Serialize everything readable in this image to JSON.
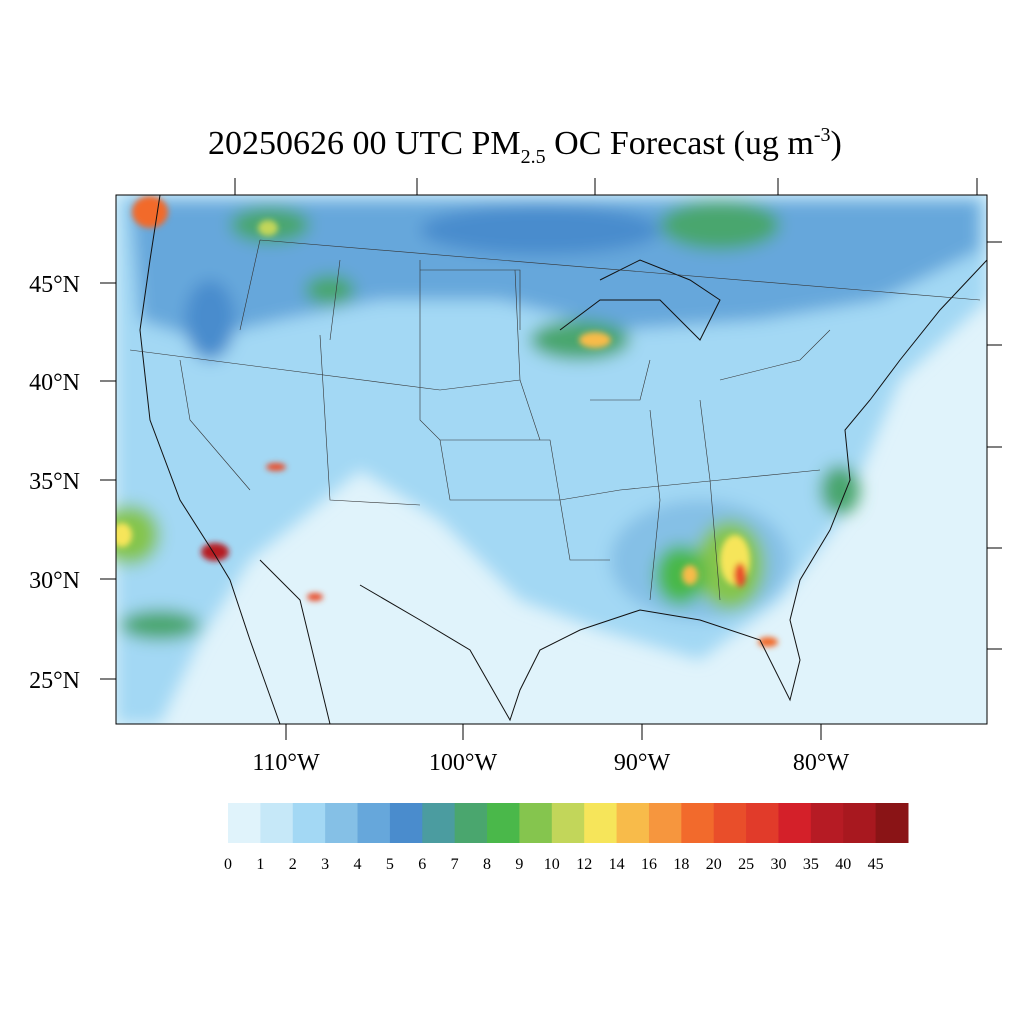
{
  "title": {
    "main": "20250626 00 UTC PM",
    "sub": "2.5",
    "rest": " OC Forecast (ug m",
    "sup": "-3",
    "end": ")"
  },
  "lat_labels": [
    "45°N",
    "40°N",
    "35°N",
    "30°N",
    "25°N"
  ],
  "lon_labels": [
    "110°W",
    "100°W",
    "90°W",
    "80°W"
  ],
  "colorbar": {
    "labels": [
      "0",
      "1",
      "2",
      "3",
      "4",
      "5",
      "6",
      "7",
      "8",
      "9",
      "10",
      "12",
      "14",
      "16",
      "18",
      "20",
      "25",
      "30",
      "35",
      "40",
      "45"
    ],
    "colors": [
      "#e0f3fb",
      "#c6e8f8",
      "#a3d8f4",
      "#85c0e6",
      "#66a7db",
      "#4a8ccd",
      "#4b9ca0",
      "#4aa66e",
      "#4ab84a",
      "#85c54e",
      "#c2d65a",
      "#f6e55a",
      "#f8bb4a",
      "#f6963e",
      "#f26a2c",
      "#e94e2a",
      "#e13b2a",
      "#d42029",
      "#b61b24",
      "#a8181f",
      "#8a1416"
    ]
  }
}
